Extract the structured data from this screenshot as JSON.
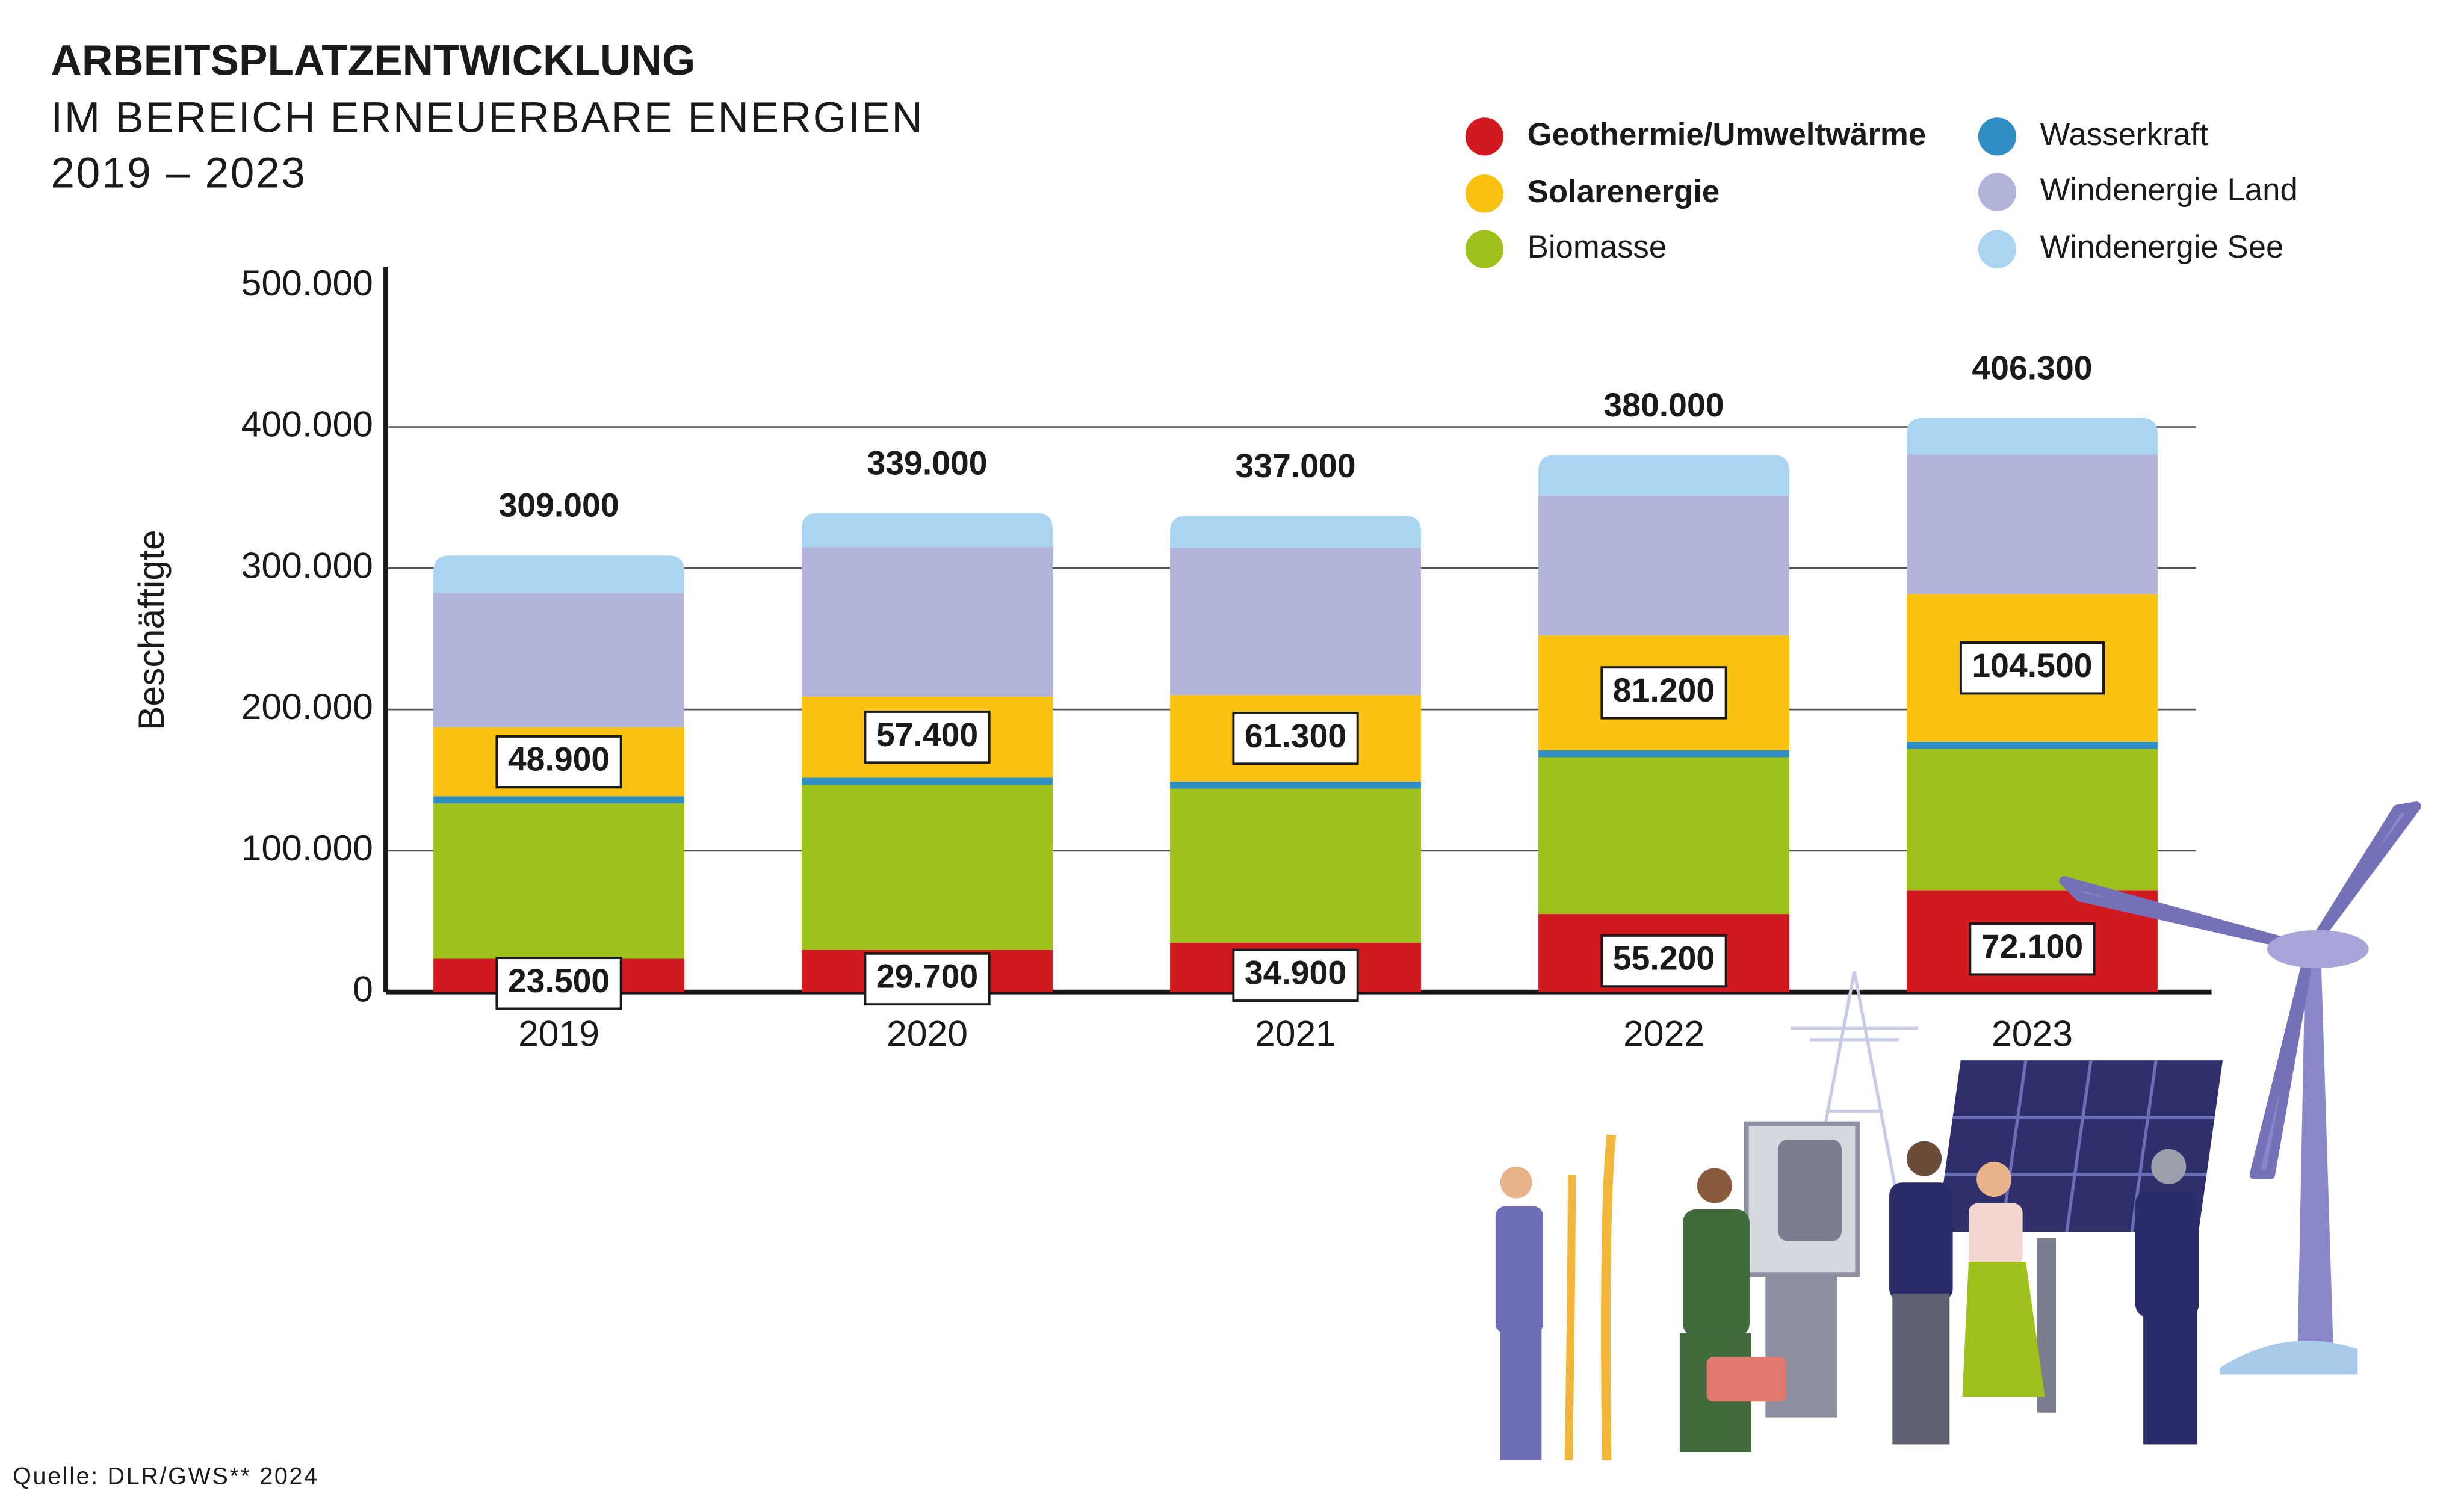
{
  "chart_data": {
    "type": "stacked-bar",
    "title": "ARBEITSPLATZENTWICKLUNG",
    "subtitle": [
      "IM BEREICH ERNEUERBARE ENERGIEN",
      "2019 – 2023"
    ],
    "y_label": "Beschäftigte",
    "source": "Quelle: DLR/GWS** 2024",
    "categories": [
      "2019",
      "2020",
      "2021",
      "2022",
      "2023"
    ],
    "series": [
      {
        "name": "Geothermie/Umweltwärme",
        "color": "#d2191f",
        "values": [
          23500,
          29700,
          34900,
          55200,
          72100
        ],
        "value_labels": [
          "23.500",
          "29.700",
          "34.900",
          "55.200",
          "72.100"
        ]
      },
      {
        "name": "Biomasse",
        "color": "#9cc21b",
        "values": [
          110000,
          117000,
          109000,
          111000,
          100000
        ]
      },
      {
        "name": "Wasserkraft",
        "color": "#2f8fc4",
        "values": [
          5000,
          5000,
          5000,
          5000,
          5000
        ]
      },
      {
        "name": "Solarenergie",
        "color": "#f9c211",
        "values": [
          48900,
          57400,
          61300,
          81200,
          104500
        ],
        "value_labels": [
          "48.900",
          "57.400",
          "61.300",
          "81.200",
          "104.500"
        ]
      },
      {
        "name": "Windenergie Land",
        "color": "#b1b3da",
        "values": [
          95000,
          106000,
          104000,
          99000,
          99000
        ]
      },
      {
        "name": "Windenergie See",
        "color": "#a9d4f2",
        "values": [
          26600,
          23900,
          22800,
          28600,
          25700
        ]
      }
    ],
    "totals": {
      "values": [
        309000,
        339000,
        337000,
        380000,
        406300
      ],
      "value_labels": [
        "309.000",
        "339.000",
        "337.000",
        "380.000",
        "406.300"
      ]
    },
    "ylim": [
      0,
      500000
    ],
    "yticks": [
      0,
      {
        "value": 100000,
        "label": "100.000"
      },
      {
        "value": 200000,
        "label": "200.000"
      },
      {
        "value": 300000,
        "label": "300.000"
      },
      {
        "value": 400000,
        "label": "400.000"
      },
      {
        "value": 500000,
        "label": "500.000"
      }
    ],
    "grid": true
  }
}
